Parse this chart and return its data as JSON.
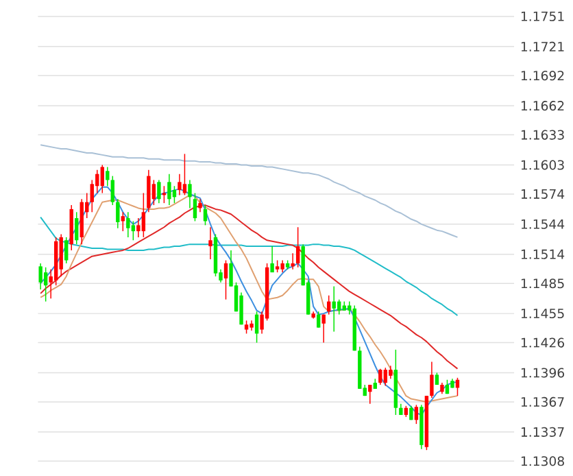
{
  "chart_data": {
    "type": "candlestick",
    "tick_labels": "y",
    "grid": "y",
    "categories": [
      null,
      null,
      null,
      null,
      null,
      null,
      null,
      null,
      null,
      null,
      null,
      null,
      null,
      null,
      null,
      null,
      null,
      null,
      null,
      null,
      null,
      null,
      null,
      null,
      null,
      null,
      null,
      null,
      null,
      null,
      null,
      null,
      null,
      null,
      null,
      null,
      null,
      null,
      null,
      null,
      null,
      null,
      null,
      null,
      null,
      null,
      null,
      null,
      null,
      null,
      null,
      null,
      null,
      null,
      null,
      null,
      null,
      null,
      null,
      null,
      null,
      null,
      null,
      null,
      null,
      null,
      null,
      null,
      null,
      null,
      null,
      null,
      null,
      null,
      null,
      null,
      null,
      null,
      null,
      null,
      null,
      null
    ],
    "ohlc": [
      [
        1.1502,
        1.1505,
        1.1479,
        1.1486
      ],
      [
        1.1496,
        1.1501,
        1.1467,
        1.1483
      ],
      [
        1.1486,
        1.1499,
        1.147,
        1.1492
      ],
      [
        1.1488,
        1.1531,
        1.1483,
        1.1527
      ],
      [
        1.1499,
        1.1534,
        1.1492,
        1.1531
      ],
      [
        1.1528,
        1.1531,
        1.1505,
        1.1508
      ],
      [
        1.1524,
        1.1563,
        1.1518,
        1.1559
      ],
      [
        1.155,
        1.1556,
        1.1524,
        1.1528
      ],
      [
        1.1531,
        1.1569,
        1.1524,
        1.1566
      ],
      [
        1.1556,
        1.1575,
        1.155,
        1.1566
      ],
      [
        1.1566,
        1.1588,
        1.1556,
        1.1584
      ],
      [
        1.1582,
        1.1598,
        1.1575,
        1.1594
      ],
      [
        1.1582,
        1.1603,
        1.1575,
        1.1601
      ],
      [
        1.1597,
        1.1601,
        1.1582,
        1.1588
      ],
      [
        1.1588,
        1.1592,
        1.1563,
        1.1566
      ],
      [
        1.1566,
        1.1569,
        1.154,
        1.1546
      ],
      [
        1.1547,
        1.1556,
        1.1537,
        1.1552
      ],
      [
        1.155,
        1.1556,
        1.1531,
        1.154
      ],
      [
        1.1543,
        1.1547,
        1.1528,
        1.1537
      ],
      [
        1.1537,
        1.155,
        1.1531,
        1.1543
      ],
      [
        1.1537,
        1.1575,
        1.1531,
        1.1556
      ],
      [
        1.156,
        1.1598,
        1.1556,
        1.1592
      ],
      [
        1.1569,
        1.1588,
        1.1563,
        1.1584
      ],
      [
        1.1586,
        1.1588,
        1.1565,
        1.1569
      ],
      [
        1.1573,
        1.1582,
        1.1565,
        1.1575
      ],
      [
        1.1586,
        1.1594,
        1.1563,
        1.1569
      ],
      [
        1.1578,
        1.1582,
        1.1565,
        1.1571
      ],
      [
        1.1578,
        1.1594,
        1.1573,
        1.1586
      ],
      [
        1.1575,
        1.1614,
        1.1573,
        1.1584
      ],
      [
        1.1584,
        1.1588,
        1.156,
        1.1571
      ],
      [
        1.1569,
        1.1575,
        1.1547,
        1.155
      ],
      [
        1.156,
        1.1569,
        1.1556,
        1.1565
      ],
      [
        1.1559,
        1.1563,
        1.1543,
        1.1547
      ],
      [
        1.1522,
        1.1541,
        1.1509,
        1.1528
      ],
      [
        1.1531,
        1.1534,
        1.1492,
        1.1495
      ],
      [
        1.1496,
        1.1499,
        1.1486,
        1.1488
      ],
      [
        1.149,
        1.1508,
        1.1469,
        1.1505
      ],
      [
        1.1505,
        1.1518,
        1.1482,
        1.1482
      ],
      [
        1.1483,
        1.1486,
        1.1457,
        1.1457
      ],
      [
        1.1473,
        1.1476,
        1.1444,
        1.1444
      ],
      [
        1.1439,
        1.1448,
        1.1435,
        1.1444
      ],
      [
        1.1441,
        1.1448,
        1.1438,
        1.1445
      ],
      [
        1.1454,
        1.1457,
        1.1426,
        1.1435
      ],
      [
        1.1439,
        1.1457,
        1.1435,
        1.1454
      ],
      [
        1.145,
        1.1505,
        1.1448,
        1.1501
      ],
      [
        1.1505,
        1.1522,
        1.1496,
        1.1496
      ],
      [
        1.1499,
        1.1508,
        1.1496,
        1.1502
      ],
      [
        1.1499,
        1.1508,
        1.1496,
        1.1505
      ],
      [
        1.1505,
        1.1508,
        1.1499,
        1.1501
      ],
      [
        1.1502,
        1.1515,
        1.1499,
        1.1505
      ],
      [
        1.1505,
        1.1541,
        1.1501,
        1.1522
      ],
      [
        1.1522,
        1.1524,
        1.1483,
        1.1483
      ],
      [
        1.1486,
        1.1488,
        1.1454,
        1.1454
      ],
      [
        1.1451,
        1.1457,
        1.145,
        1.1455
      ],
      [
        1.1454,
        1.1457,
        1.1441,
        1.1441
      ],
      [
        1.1445,
        1.1454,
        1.1426,
        1.1454
      ],
      [
        1.1457,
        1.1473,
        1.1454,
        1.1467
      ],
      [
        1.1467,
        1.1482,
        1.1437,
        1.146
      ],
      [
        1.1467,
        1.1469,
        1.1454,
        1.1458
      ],
      [
        1.1463,
        1.1467,
        1.1458,
        1.1458
      ],
      [
        1.1463,
        1.1467,
        1.1454,
        1.1458
      ],
      [
        1.146,
        1.1463,
        1.1418,
        1.1418
      ],
      [
        1.1418,
        1.1422,
        1.138,
        1.138
      ],
      [
        1.1381,
        1.1384,
        1.1373,
        1.1373
      ],
      [
        1.1377,
        1.1384,
        1.1365,
        1.1384
      ],
      [
        1.1386,
        1.139,
        1.138,
        1.138
      ],
      [
        1.1386,
        1.14,
        1.1384,
        1.1399
      ],
      [
        1.1386,
        1.1401,
        1.1383,
        1.1399
      ],
      [
        1.1393,
        1.1403,
        1.139,
        1.1399
      ],
      [
        1.1399,
        1.1419,
        1.1354,
        1.1361
      ],
      [
        1.1361,
        1.1365,
        1.1354,
        1.1354
      ],
      [
        1.1354,
        1.1363,
        1.1352,
        1.1361
      ],
      [
        1.1361,
        1.1363,
        1.1349,
        1.1349
      ],
      [
        1.1349,
        1.1364,
        1.1345,
        1.1362
      ],
      [
        1.1362,
        1.1364,
        1.132,
        1.1324
      ],
      [
        1.1322,
        1.1373,
        1.1319,
        1.1373
      ],
      [
        1.1373,
        1.1407,
        1.1371,
        1.1394
      ],
      [
        1.1394,
        1.1396,
        1.1384,
        1.1384
      ],
      [
        1.1377,
        1.1386,
        1.1375,
        1.1384
      ],
      [
        1.1384,
        1.1389,
        1.1375,
        1.1375
      ],
      [
        1.1388,
        1.139,
        1.1381,
        1.1381
      ],
      [
        1.1381,
        1.1391,
        1.1373,
        1.1389
      ]
    ],
    "colors": [
      "#00e600",
      "#00e600",
      "#ff0000",
      "#ff0000",
      "#ff0000",
      "#00e600",
      "#ff0000",
      "#00e600",
      "#ff0000",
      "#ff0000",
      "#ff0000",
      "#ff0000",
      "#ff0000",
      "#00e600",
      "#00e600",
      "#00e600",
      "#ff0000",
      "#00e600",
      "#00e600",
      "#ff0000",
      "#ff0000",
      "#ff0000",
      "#ff0000",
      "#00e600",
      "#ff0000",
      "#00e600",
      "#00e600",
      "#ff0000",
      "#ff0000",
      "#00e600",
      "#00e600",
      "#ff0000",
      "#00e600",
      "#ff0000",
      "#00e600",
      "#00e600",
      "#ff0000",
      "#00e600",
      "#00e600",
      "#00e600",
      "#ff0000",
      "#ff0000",
      "#00e600",
      "#ff0000",
      "#ff0000",
      "#00e600",
      "#ff0000",
      "#ff0000",
      "#00e600",
      "#ff0000",
      "#ff0000",
      "#00e600",
      "#00e600",
      "#ff0000",
      "#00e600",
      "#ff0000",
      "#ff0000",
      "#00e600",
      "#00e600",
      "#00e600",
      "#00e600",
      "#00e600",
      "#00e600",
      "#00e600",
      "#ff0000",
      "#00e600",
      "#ff0000",
      "#ff0000",
      "#ff0000",
      "#00e600",
      "#00e600",
      "#ff0000",
      "#00e600",
      "#ff0000",
      "#00e600",
      "#ff0000",
      "#ff0000",
      "#00e600",
      "#ff0000",
      "#00e600",
      "#00e600",
      "#ff0000"
    ],
    "series": [
      {
        "type": "line",
        "color": "#a9c0d6",
        "values": [
          1.1623,
          1.1622,
          1.1621,
          1.162,
          1.1619,
          1.1619,
          1.1618,
          1.1617,
          1.1616,
          1.1615,
          1.1615,
          1.1614,
          1.1613,
          1.1612,
          1.1611,
          1.1611,
          1.1611,
          1.161,
          1.161,
          1.161,
          1.161,
          1.1609,
          1.1609,
          1.1609,
          1.1608,
          1.1608,
          1.1608,
          1.1608,
          1.1607,
          1.1607,
          1.1607,
          1.1606,
          1.1606,
          1.1606,
          1.1605,
          1.1605,
          1.1604,
          1.1604,
          1.1604,
          1.1603,
          1.1603,
          1.1602,
          1.1602,
          1.1602,
          1.1601,
          1.1601,
          1.16,
          1.1599,
          1.1598,
          1.1597,
          1.1596,
          1.1595,
          1.1595,
          1.1594,
          1.1593,
          1.1591,
          1.1589,
          1.1586,
          1.1584,
          1.1582,
          1.1579,
          1.1577,
          1.1575,
          1.1572,
          1.157,
          1.1568,
          1.1565,
          1.1563,
          1.156,
          1.1557,
          1.1555,
          1.1552,
          1.1549,
          1.1547,
          1.1544,
          1.1542,
          1.154,
          1.1538,
          1.1537,
          1.1535,
          1.1533,
          1.1531
        ]
      },
      {
        "type": "line",
        "color": "#20bcc8",
        "values": [
          1.1551,
          1.1544,
          1.1537,
          1.153,
          1.1527,
          1.1526,
          1.1524,
          1.1523,
          1.1522,
          1.1521,
          1.152,
          1.152,
          1.152,
          1.1519,
          1.1519,
          1.1519,
          1.1519,
          1.1518,
          1.1518,
          1.1518,
          1.1518,
          1.1519,
          1.1519,
          1.152,
          1.1521,
          1.1521,
          1.1522,
          1.1522,
          1.1523,
          1.1524,
          1.1524,
          1.1524,
          1.1524,
          1.1524,
          1.1523,
          1.1523,
          1.1523,
          1.1523,
          1.1523,
          1.1523,
          1.1522,
          1.1522,
          1.1522,
          1.1522,
          1.1522,
          1.1522,
          1.1522,
          1.1522,
          1.1523,
          1.1523,
          1.1523,
          1.1523,
          1.1523,
          1.1524,
          1.1524,
          1.1523,
          1.1523,
          1.1522,
          1.1522,
          1.1521,
          1.152,
          1.1518,
          1.1515,
          1.1512,
          1.1509,
          1.1506,
          1.1503,
          1.15,
          1.1497,
          1.1494,
          1.1491,
          1.1487,
          1.1484,
          1.1481,
          1.1477,
          1.1474,
          1.147,
          1.1467,
          1.1464,
          1.146,
          1.1457,
          1.1453
        ]
      },
      {
        "type": "line",
        "color": "#e02828",
        "values": [
          1.1475,
          1.148,
          1.1484,
          1.1488,
          1.1493,
          1.1497,
          1.15,
          1.1503,
          1.1506,
          1.1509,
          1.1512,
          1.1513,
          1.1514,
          1.1515,
          1.1516,
          1.1517,
          1.1518,
          1.152,
          1.1523,
          1.1526,
          1.1529,
          1.1532,
          1.1535,
          1.1538,
          1.1541,
          1.1545,
          1.1548,
          1.1551,
          1.1555,
          1.1558,
          1.1561,
          1.1562,
          1.1563,
          1.1561,
          1.1559,
          1.1558,
          1.1556,
          1.1554,
          1.155,
          1.1546,
          1.1542,
          1.1538,
          1.1535,
          1.1531,
          1.1528,
          1.1527,
          1.1526,
          1.1525,
          1.1524,
          1.1523,
          1.152,
          1.1515,
          1.151,
          1.1506,
          1.1501,
          1.1497,
          1.1493,
          1.1489,
          1.1485,
          1.1481,
          1.1477,
          1.1474,
          1.1471,
          1.1468,
          1.1465,
          1.1462,
          1.1459,
          1.1456,
          1.1453,
          1.1449,
          1.1445,
          1.1442,
          1.1438,
          1.1434,
          1.1431,
          1.1427,
          1.1422,
          1.1417,
          1.1413,
          1.1408,
          1.1404,
          1.14
        ]
      },
      {
        "type": "line",
        "color": "#e0a070",
        "values": [
          1.1471,
          1.1474,
          1.1478,
          1.1481,
          1.1484,
          1.1492,
          1.1504,
          1.1515,
          1.1526,
          1.1536,
          1.1546,
          1.1556,
          1.1566,
          1.1567,
          1.1568,
          1.1568,
          1.1566,
          1.1564,
          1.1562,
          1.156,
          1.1559,
          1.1559,
          1.1559,
          1.156,
          1.156,
          1.1561,
          1.1564,
          1.1567,
          1.157,
          1.1573,
          1.1572,
          1.1565,
          1.1561,
          1.1558,
          1.1555,
          1.155,
          1.1542,
          1.1534,
          1.1526,
          1.1519,
          1.151,
          1.1499,
          1.1488,
          1.1477,
          1.1469,
          1.147,
          1.1471,
          1.1473,
          1.1478,
          1.1484,
          1.1489,
          1.149,
          1.1489,
          1.1489,
          1.1482,
          1.1462,
          1.1457,
          1.1458,
          1.1458,
          1.1459,
          1.146,
          1.1454,
          1.1447,
          1.1439,
          1.1432,
          1.1424,
          1.1417,
          1.1409,
          1.14,
          1.1391,
          1.1382,
          1.1373,
          1.137,
          1.1369,
          1.1368,
          1.1367,
          1.1368,
          1.1369,
          1.137,
          1.1371,
          1.1372,
          1.1373
        ]
      },
      {
        "type": "line",
        "color": "#3c8fe0",
        "values": [
          1.1485,
          1.1491,
          1.1497,
          1.1504,
          1.1513,
          1.1523,
          1.1532,
          1.1541,
          1.155,
          1.156,
          1.1569,
          1.1575,
          1.1581,
          1.1581,
          1.1575,
          1.1566,
          1.1556,
          1.1549,
          1.1544,
          1.1547,
          1.1553,
          1.156,
          1.1567,
          1.1573,
          1.1575,
          1.1576,
          1.1578,
          1.1579,
          1.1577,
          1.1574,
          1.1572,
          1.157,
          1.1558,
          1.1544,
          1.1531,
          1.1523,
          1.1516,
          1.1508,
          1.1498,
          1.1487,
          1.1477,
          1.1468,
          1.1458,
          1.1455,
          1.1469,
          1.1483,
          1.1489,
          1.1495,
          1.15,
          1.1502,
          1.1505,
          1.1499,
          1.1492,
          1.1462,
          1.1454,
          1.1455,
          1.1457,
          1.1458,
          1.1459,
          1.1459,
          1.146,
          1.1451,
          1.1439,
          1.1427,
          1.1415,
          1.1403,
          1.1392,
          1.1384,
          1.138,
          1.1376,
          1.1372,
          1.1367,
          1.1362,
          1.1356,
          1.1354,
          1.1362,
          1.1369,
          1.1376,
          1.1379,
          1.1384,
          1.1386,
          1.1387
        ]
      }
    ],
    "ylim": [
      1.1308,
      1.1751
    ],
    "yticks": [
      1.1751,
      1.1721,
      1.1692,
      1.1662,
      1.1633,
      1.1603,
      1.1574,
      1.1544,
      1.1514,
      1.1485,
      1.1455,
      1.1426,
      1.1396,
      1.1367,
      1.1337,
      1.1308
    ]
  }
}
